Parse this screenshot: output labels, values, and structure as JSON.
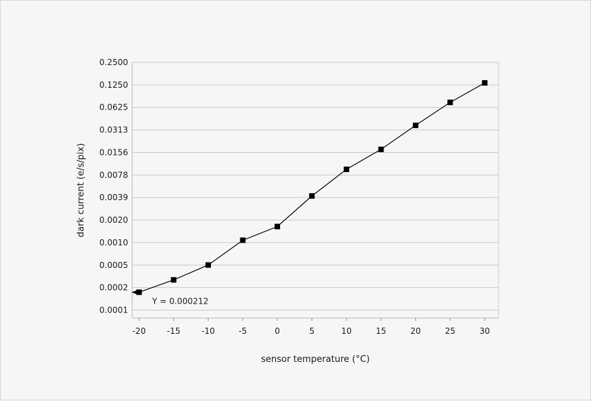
{
  "chart_data": {
    "type": "line",
    "title": "",
    "xlabel": "sensor temperature (°C)",
    "ylabel": "dark current (e/s/pix)",
    "yscale": "log2",
    "xlim": [
      -21,
      32
    ],
    "ylim": [
      0.0001,
      0.25
    ],
    "grid": "horizontal",
    "x_ticks": [
      "-20",
      "-15",
      "-10",
      "-5",
      "0",
      "5",
      "10",
      "15",
      "20",
      "25",
      "30"
    ],
    "y_ticks": [
      {
        "label": "0.2500",
        "value": 0.25
      },
      {
        "label": "0.1250",
        "value": 0.125
      },
      {
        "label": "0.0625",
        "value": 0.0625
      },
      {
        "label": "0.0313",
        "value": 0.03125
      },
      {
        "label": "0.0156",
        "value": 0.015625
      },
      {
        "label": "0.0078",
        "value": 0.0078125
      },
      {
        "label": "0.0039",
        "value": 0.00390625
      },
      {
        "label": "0.0020",
        "value": 0.001953125
      },
      {
        "label": "0.0010",
        "value": 0.0009765625
      },
      {
        "label": "0.0005",
        "value": 0.00048828125
      },
      {
        "label": "0.0002",
        "value": 0.000244140625
      },
      {
        "label": "0.0001",
        "value": 0.0001220703125
      }
    ],
    "series": [
      {
        "marker": "square",
        "color": "#000000",
        "x": [
          -20,
          -15,
          -10,
          -5,
          0,
          5,
          10,
          15,
          20,
          25,
          30
        ],
        "y": [
          0.000212,
          0.00031,
          0.00049,
          0.00105,
          0.0016,
          0.0041,
          0.0093,
          0.0172,
          0.036,
          0.073,
          0.133
        ]
      }
    ],
    "annotation": {
      "text": "Y = 0.000212",
      "x": -20,
      "y": 0.000212
    }
  }
}
